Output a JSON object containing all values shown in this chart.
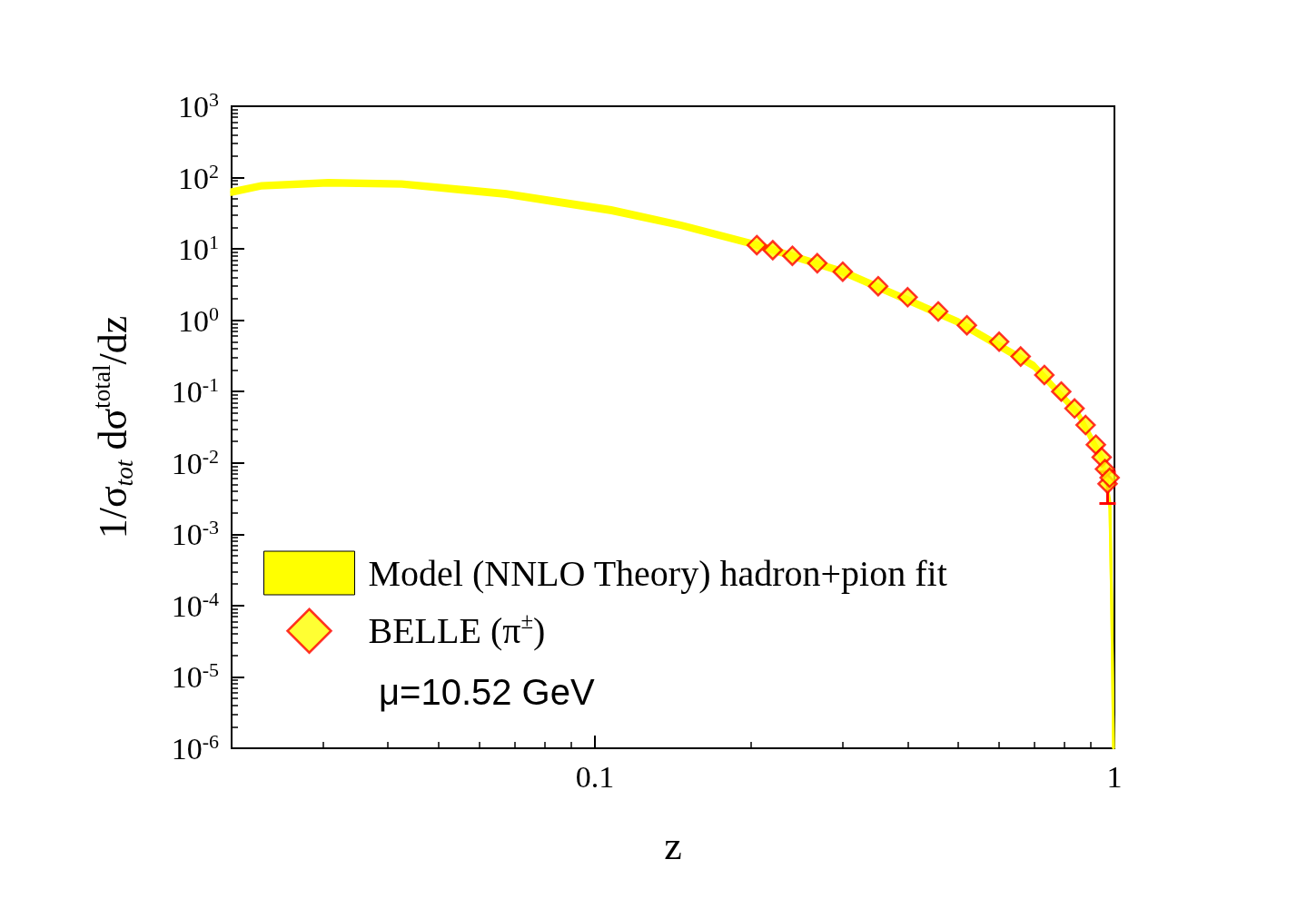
{
  "chart_data": {
    "type": "line",
    "xlabel": "z",
    "ylabel": "1/σ$_{tot}$ dσ$^{total}$/dz",
    "log": "xy",
    "xlim": [
      0.02,
      1
    ],
    "xticks": [
      0.1,
      1
    ],
    "ylim": [
      1e-06,
      1000
    ],
    "yticks": [
      {
        "value": 1e-06,
        "label": "10$^{-6}$"
      },
      {
        "value": 1e-05,
        "label": "10$^{-5}$"
      },
      {
        "value": 0.0001,
        "label": "10$^{-4}$"
      },
      {
        "value": 0.001,
        "label": "10$^{-3}$"
      },
      {
        "value": 0.01,
        "label": "10$^{-2}$"
      },
      {
        "value": 0.1,
        "label": "10$^{-1}$"
      },
      {
        "value": 1,
        "label": "10$^{0}$"
      },
      {
        "value": 10,
        "label": "10$^{1}$"
      },
      {
        "value": 100,
        "label": "10$^{2}$"
      },
      {
        "value": 1000,
        "label": "10$^{3}$"
      }
    ],
    "grid": false,
    "legend": "bottom left",
    "annotations": [
      "μ=10.52 GeV"
    ],
    "series": [
      {
        "name": "Model (NNLO Theory) hadron+pion fit",
        "type": "line",
        "color": "#ffff00",
        "marker": "none",
        "x": [
          0.02,
          0.0228,
          0.0307,
          0.0425,
          0.0676,
          0.1076,
          0.1466,
          0.206,
          0.3,
          0.5,
          0.7,
          0.85,
          0.95,
          0.98,
          0.988,
          0.996
        ],
        "values": [
          63,
          77,
          85,
          81,
          59,
          35,
          21.5,
          11.3,
          4.8,
          0.95,
          0.23,
          0.05,
          0.011,
          0.0026,
          0.0001,
          1e-06
        ],
        "lower": [
          58,
          71,
          78,
          75,
          54,
          32,
          19.8,
          10.4,
          4.4,
          0.87,
          0.21,
          0.046,
          0.0099,
          0.0023,
          9e-05,
          1e-06
        ],
        "upper": [
          68,
          83,
          92,
          88,
          64,
          38,
          23.2,
          12.2,
          5.2,
          1.03,
          0.25,
          0.054,
          0.0121,
          0.0029,
          0.00011,
          1e-06
        ]
      },
      {
        "name": "BELLE (π$^{±}$)",
        "type": "scatter",
        "color": "#ff0000",
        "marker": "diamond",
        "x": [
          0.205,
          0.22,
          0.24,
          0.268,
          0.3,
          0.351,
          0.4,
          0.458,
          0.52,
          0.6,
          0.66,
          0.733,
          0.79,
          0.838,
          0.88,
          0.921,
          0.945,
          0.959,
          0.97,
          0.979
        ],
        "values": [
          11.3,
          9.6,
          8,
          6.3,
          4.8,
          3,
          2.1,
          1.33,
          0.85,
          0.5,
          0.31,
          0.171,
          0.1,
          0.058,
          0.034,
          0.018,
          0.012,
          0.0082,
          0.0051,
          0.0062
        ],
        "errors": [
          null,
          null,
          null,
          null,
          null,
          null,
          null,
          null,
          null,
          null,
          null,
          null,
          null,
          null,
          null,
          null,
          null,
          null,
          [
            0.0027,
            0.0075
          ],
          null
        ]
      }
    ]
  }
}
